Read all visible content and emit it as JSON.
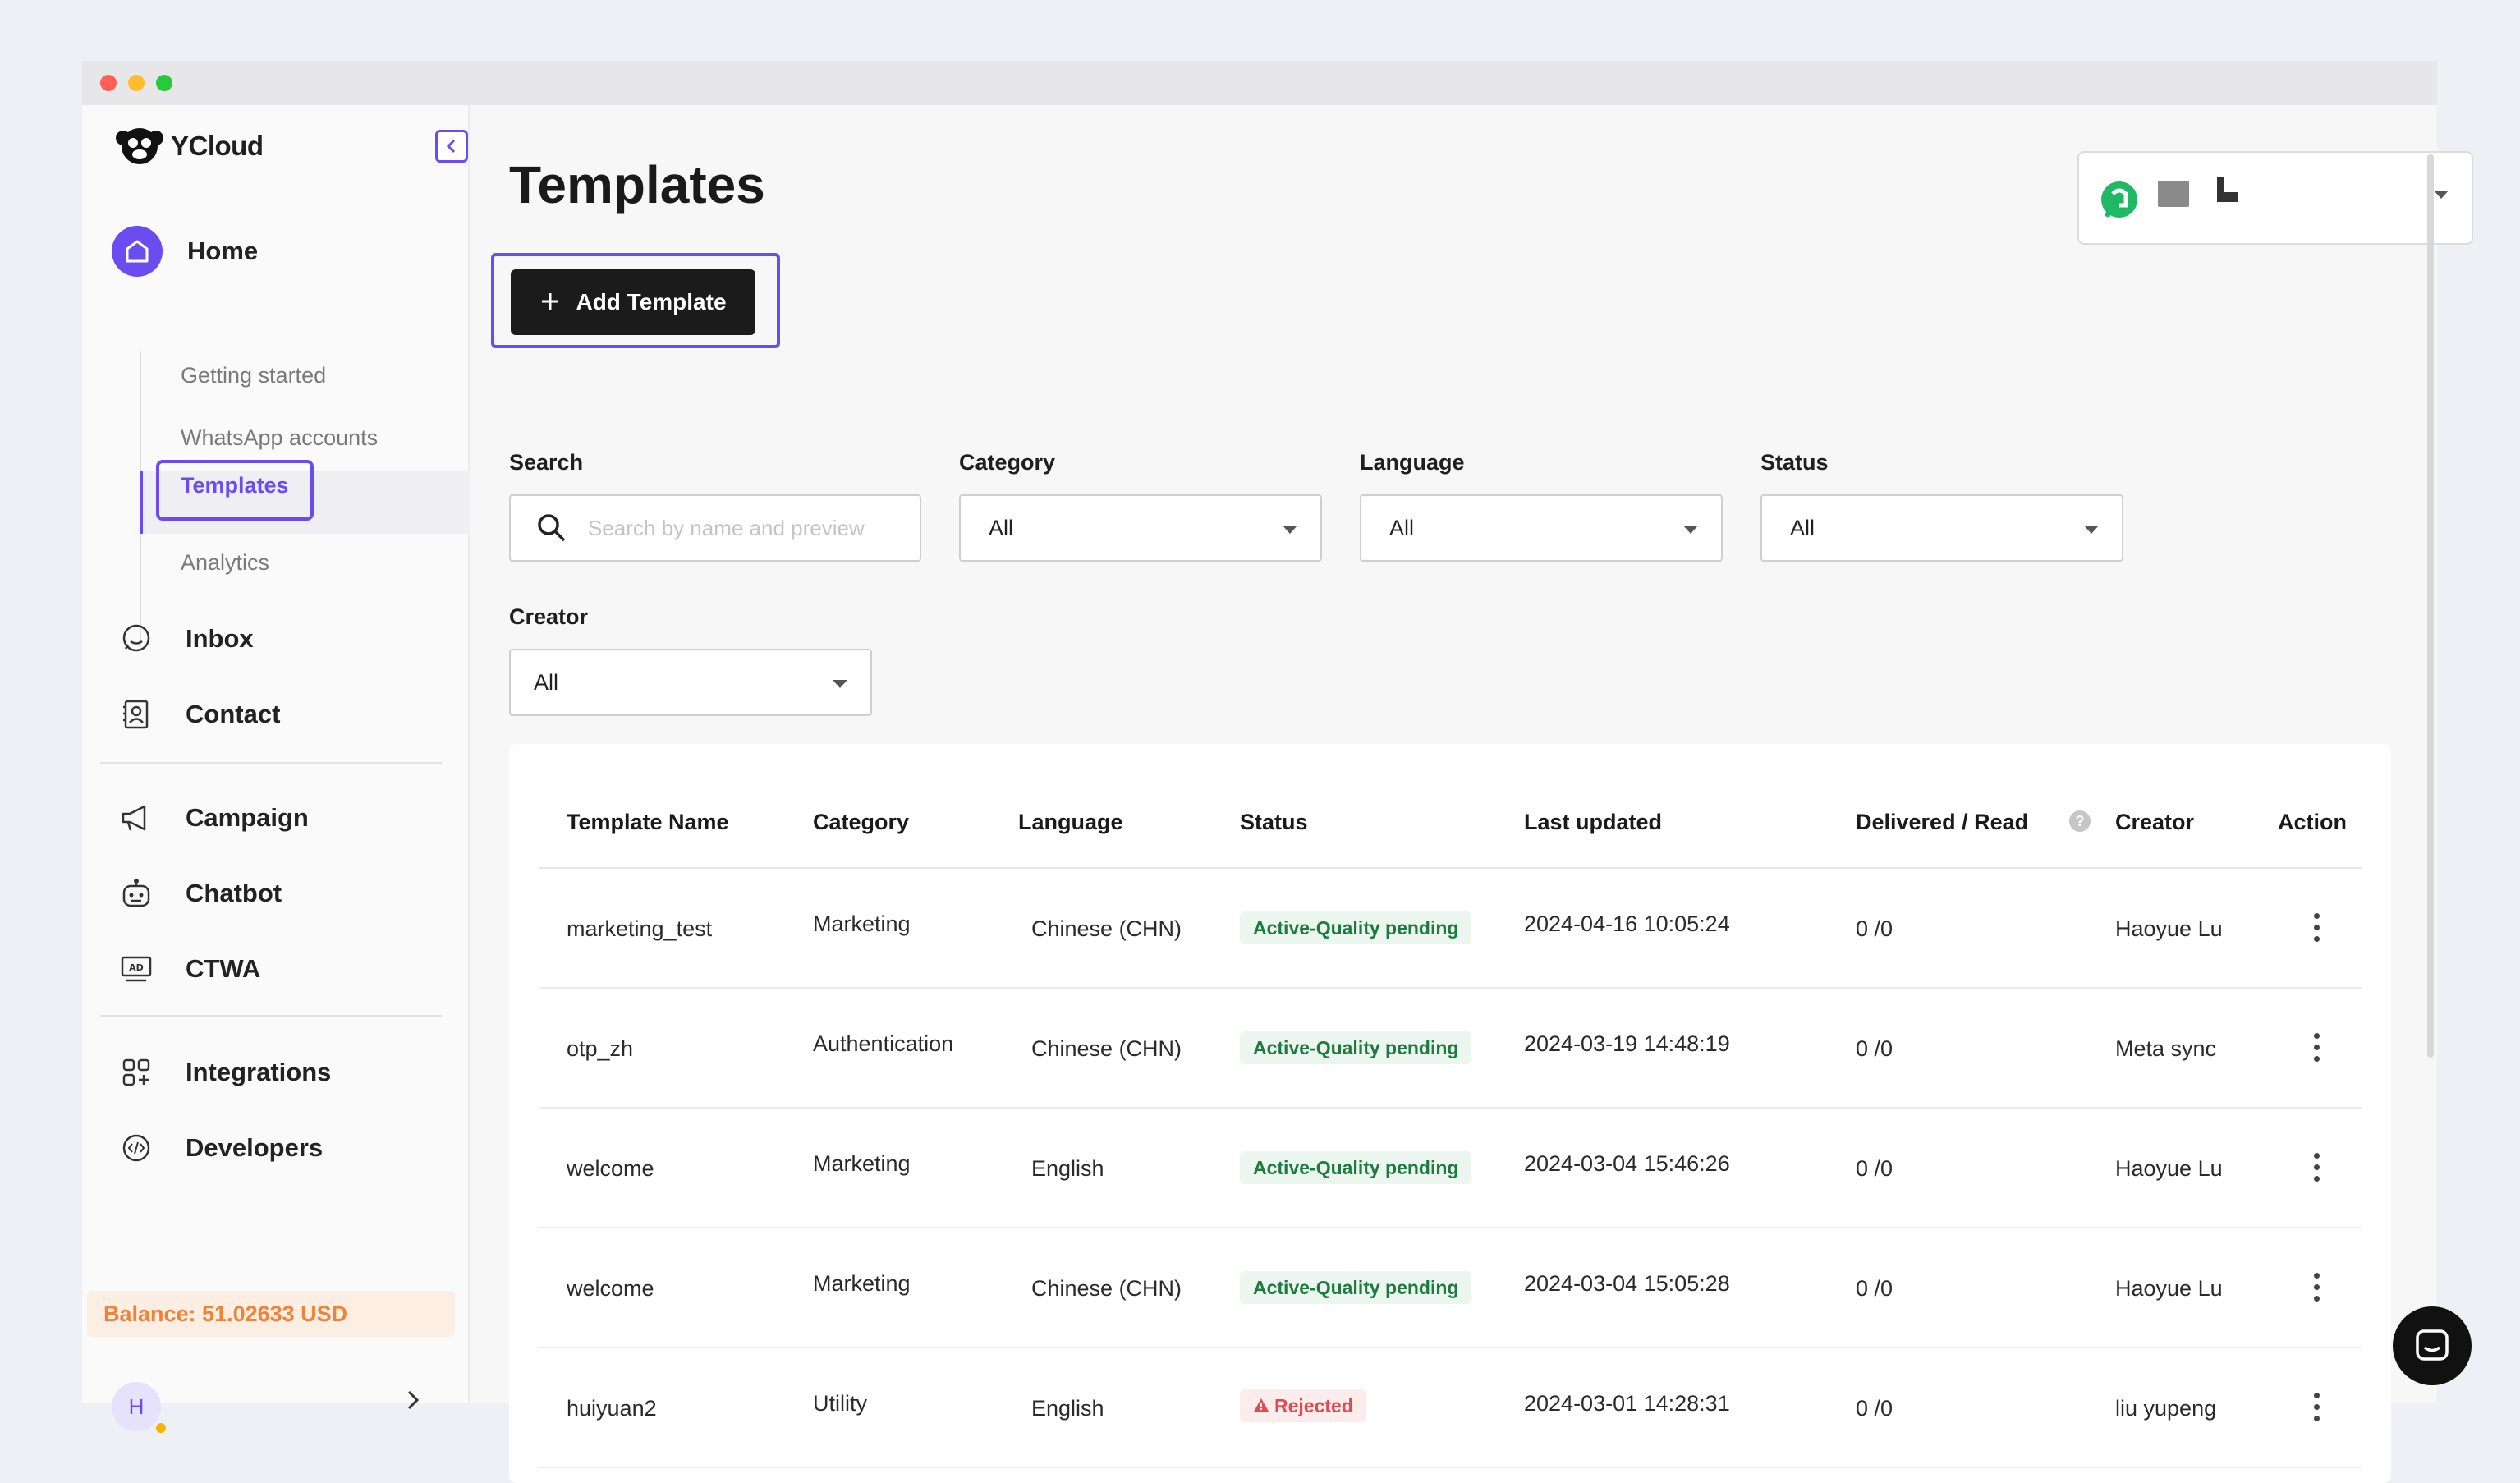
{
  "app": {
    "brand": "YCloud",
    "window_dots": [
      "#ff5f57",
      "#febc2e",
      "#28c840"
    ],
    "accent_color": "#6b4cf0"
  },
  "sidebar": {
    "home_label": "Home",
    "sub_items": {
      "getting_started": "Getting started",
      "whatsapp_accounts": "WhatsApp accounts",
      "templates": "Templates",
      "analytics": "Analytics"
    },
    "items": {
      "inbox": "Inbox",
      "contact": "Contact",
      "campaign": "Campaign",
      "chatbot": "Chatbot",
      "ctwa": "CTWA",
      "integrations": "Integrations",
      "developers": "Developers"
    },
    "balance": "Balance: 51.02633 USD",
    "user_initial": "H"
  },
  "main": {
    "title": "Templates",
    "add_button": "Add Template",
    "filters": {
      "search_label": "Search",
      "search_placeholder": "Search by name and preview",
      "category_label": "Category",
      "category_value": "All",
      "language_label": "Language",
      "language_value": "All",
      "status_label": "Status",
      "status_value": "All",
      "creator_label": "Creator",
      "creator_value": "All"
    }
  },
  "table": {
    "headers": {
      "name": "Template Name",
      "category": "Category",
      "language": "Language",
      "status": "Status",
      "updated": "Last updated",
      "delivered": "Delivered / Read",
      "creator": "Creator",
      "action": "Action"
    },
    "rows": [
      {
        "name": "marketing_test",
        "category": "Marketing",
        "language": "Chinese (CHN)",
        "status": "Active-Quality pending",
        "status_type": "ok",
        "updated": "2024-04-16 10:05:24",
        "delivered": "0 /0",
        "creator": "Haoyue Lu"
      },
      {
        "name": "otp_zh",
        "category": "Authentication",
        "language": "Chinese (CHN)",
        "status": "Active-Quality pending",
        "status_type": "ok",
        "updated": "2024-03-19 14:48:19",
        "delivered": "0 /0",
        "creator": "Meta sync"
      },
      {
        "name": "welcome",
        "category": "Marketing",
        "language": "English",
        "status": "Active-Quality pending",
        "status_type": "ok",
        "updated": "2024-03-04 15:46:26",
        "delivered": "0 /0",
        "creator": "Haoyue Lu"
      },
      {
        "name": "welcome",
        "category": "Marketing",
        "language": "Chinese (CHN)",
        "status": "Active-Quality pending",
        "status_type": "ok",
        "updated": "2024-03-04 15:05:28",
        "delivered": "0 /0",
        "creator": "Haoyue Lu"
      },
      {
        "name": "huiyuan2",
        "category": "Utility",
        "language": "English",
        "status": "Rejected",
        "status_type": "rejected",
        "updated": "2024-03-01 14:28:31",
        "delivered": "0 /0",
        "creator": "liu yupeng"
      }
    ]
  }
}
